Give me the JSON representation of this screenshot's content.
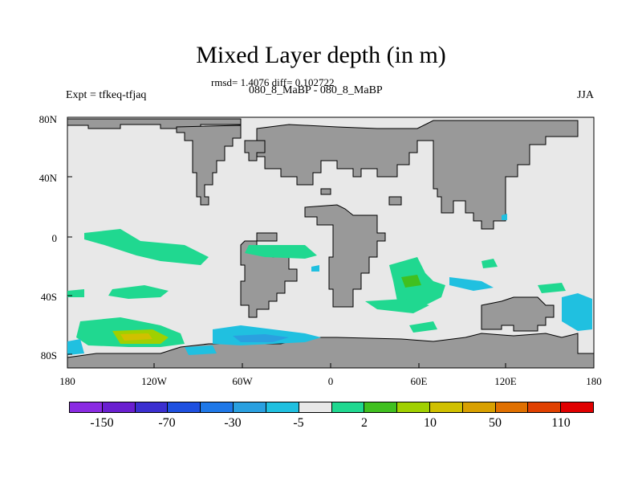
{
  "title": "Mixed Layer depth (in m)",
  "stats_line": "rmsd= 1.4076 diff= 0.102722",
  "subtitle": "080_8_MaBP - 080_8_MaBP",
  "left_label": "Expt = tfkeq-tfjaq",
  "right_label": "JJA",
  "lat_labels": [
    "80N",
    "40N",
    "0",
    "40S",
    "80S"
  ],
  "lon_labels": [
    "180",
    "120W",
    "60W",
    "0",
    "60E",
    "120E",
    "180"
  ],
  "colorbar": {
    "colors": [
      "#8a2be2",
      "#6a1fd0",
      "#3b2fd0",
      "#1e50e0",
      "#1f78e8",
      "#2aa0e0",
      "#20c0e0",
      "#e8e8e8",
      "#20d890",
      "#40c020",
      "#a0d000",
      "#d0c000",
      "#d8a000",
      "#e07000",
      "#e04000",
      "#e00000"
    ],
    "labels": [
      "-150",
      "-70",
      "-30",
      "-5",
      "2",
      "10",
      "50",
      "110"
    ]
  },
  "colors": {
    "ocean": "#e8e8e8",
    "land": "#999999",
    "land_outline": "#000000"
  }
}
